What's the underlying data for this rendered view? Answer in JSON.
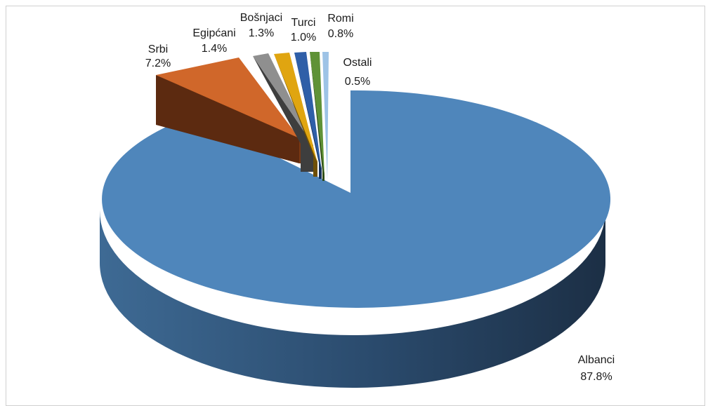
{
  "chart_data": {
    "type": "pie",
    "style": "3d-exploded",
    "series": [
      {
        "name": "Albanci",
        "value": 87.8,
        "label": "87.8%",
        "color": "#4f86bb"
      },
      {
        "name": "Srbi",
        "value": 7.2,
        "label": "7.2%",
        "color": "#d0672a"
      },
      {
        "name": "Egipćani",
        "value": 1.4,
        "label": "1.4%",
        "color": "#8f8f8f"
      },
      {
        "name": "Bošnjaci",
        "value": 1.3,
        "label": "1.3%",
        "color": "#e0a510"
      },
      {
        "name": "Turci",
        "value": 1.0,
        "label": "1.0%",
        "color": "#2f5fa8"
      },
      {
        "name": "Romi",
        "value": 0.8,
        "label": "0.8%",
        "color": "#5f9236"
      },
      {
        "name": "Ostali",
        "value": 0.5,
        "label": "0.5%",
        "color": "#9dc3e6"
      }
    ],
    "legend": "none"
  }
}
